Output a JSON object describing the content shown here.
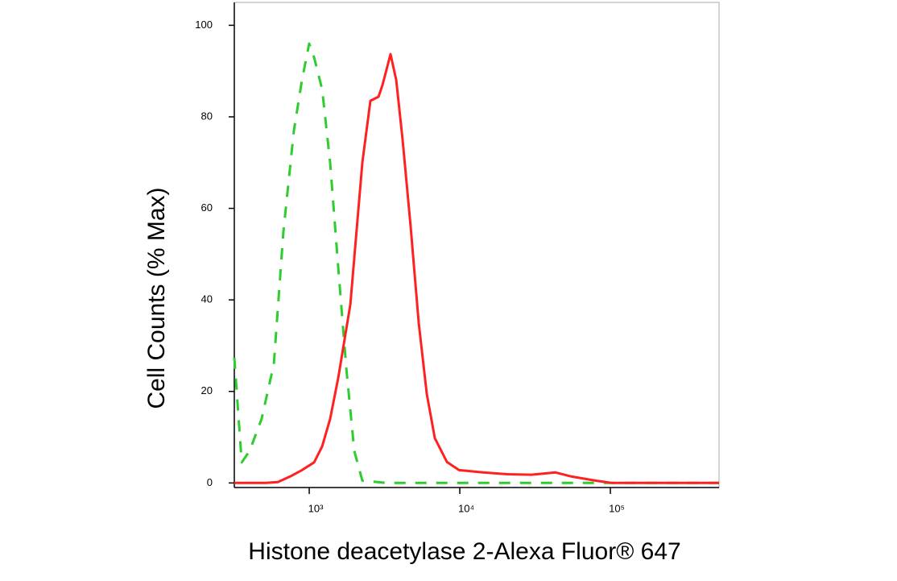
{
  "chart_data": {
    "type": "line",
    "xlabel": "Histone deacetylase 2-Alexa Fluor® 647",
    "ylabel": "Cell Counts (% Max)",
    "xscale": "log",
    "xlim": [
      318,
      527000
    ],
    "ylim": [
      -1,
      105
    ],
    "xticks": [
      {
        "value": 1000,
        "label": "10³"
      },
      {
        "value": 10000,
        "label": "10⁴"
      },
      {
        "value": 100000,
        "label": "10⁵"
      }
    ],
    "yticks": [
      0,
      20,
      40,
      60,
      80,
      100
    ],
    "series": [
      {
        "color": "#2ecc2e",
        "dashed": true,
        "x": [
          318,
          356,
          402,
          483,
          582,
          674,
          791,
          895,
          1000,
          1077,
          1218,
          1377,
          1559,
          1763,
          1992,
          2254,
          3261,
          14290,
          527000
        ],
        "values": [
          27.4,
          4.5,
          7,
          14,
          26,
          55,
          77,
          88,
          96,
          93,
          86,
          70,
          47,
          25,
          7,
          0.5,
          0,
          0,
          0
        ]
      },
      {
        "color": "#ff2020",
        "dashed": false,
        "x": [
          318,
          514,
          618,
          745,
          895,
          1077,
          1218,
          1377,
          1559,
          1875,
          2254,
          2549,
          2884,
          3069,
          3467,
          3781,
          4169,
          4717,
          5335,
          6035,
          6828,
          8204,
          9880,
          14290,
          20700,
          29940,
          43270,
          55340,
          80100,
          102500,
          527000
        ],
        "values": [
          0,
          0,
          0.2,
          1.4,
          2.8,
          4.5,
          8,
          14,
          23,
          39,
          70,
          83.5,
          84.4,
          87,
          93.7,
          88,
          75,
          56,
          35,
          19.5,
          9.8,
          4.6,
          2.8,
          2.3,
          1.9,
          1.8,
          2.3,
          1.4,
          0.5,
          0,
          0
        ]
      }
    ]
  }
}
